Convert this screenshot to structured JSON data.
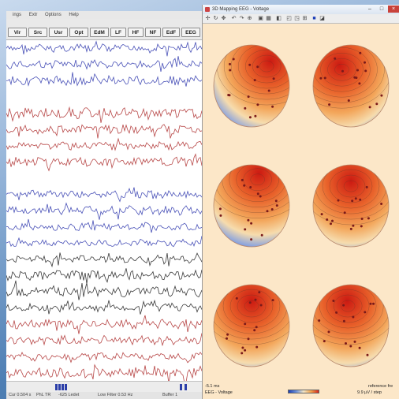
{
  "eeg_window": {
    "menu": [
      "ings",
      "Extr",
      "Options",
      "Help"
    ],
    "toolbar": [
      "Vir",
      "Src",
      "Usr",
      "Opt",
      "EdM",
      "LF",
      "HF",
      "NF",
      "EdF",
      "EEG"
    ],
    "status": {
      "cursor": "Cur 0.504 s",
      "mode": "PhL TR",
      "segment": "-625 Ledet",
      "filter": "Low Filter 0.53 Hz",
      "buffer": "Buffer 1"
    },
    "trace_colors": [
      "#4a52b8",
      "#4a52b8",
      "#4a52b8",
      "#ffffff",
      "#b84848",
      "#b84848",
      "#b84848",
      "#b84848",
      "#ffffff",
      "#4a52b8",
      "#4a52b8",
      "#4a52b8",
      "#4a52b8",
      "#3a3a3a",
      "#3a3a3a",
      "#3a3a3a",
      "#3a3a3a",
      "#b84848",
      "#b84848",
      "#b84848",
      "#b84848"
    ]
  },
  "map_window": {
    "title": "3D Mapping EEG - Voltage",
    "footer": {
      "latency": "-5.1 ms",
      "mode": "EEG - Voltage",
      "reference": "reference fre",
      "scale": "9.9 µV / step"
    }
  }
}
